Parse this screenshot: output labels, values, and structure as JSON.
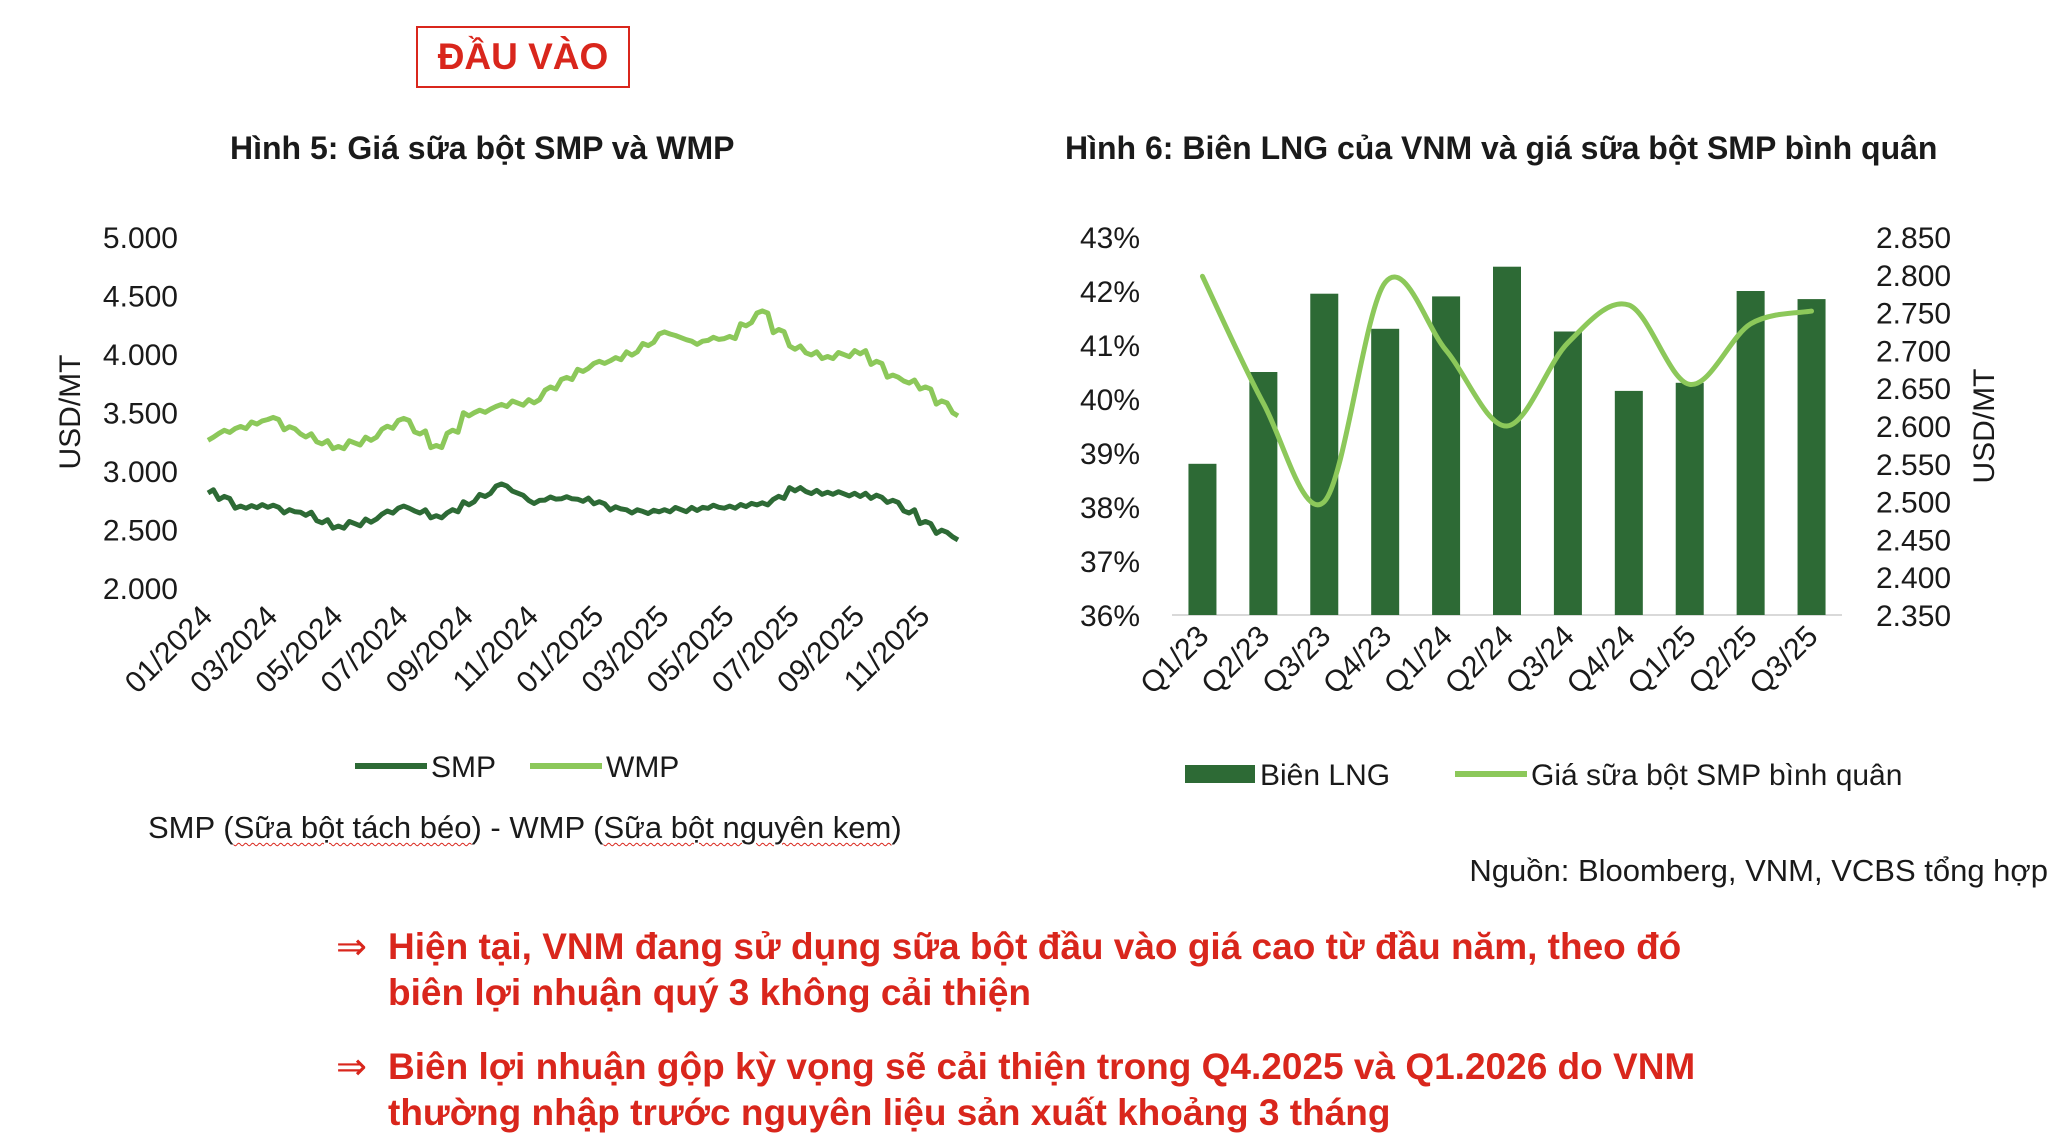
{
  "heading": "ĐẦU VÀO",
  "chart_data": [
    {
      "type": "line",
      "title": "Hình 5: Giá sữa bột SMP và WMP",
      "ylabel": "USD/MT",
      "ylim": [
        2000,
        5000
      ],
      "yticks": [
        "5.000",
        "4.500",
        "4.000",
        "3.500",
        "3.000",
        "2.500",
        "2.000"
      ],
      "xticks": [
        "01/2024",
        "03/2024",
        "05/2024",
        "07/2024",
        "09/2024",
        "11/2024",
        "01/2025",
        "03/2025",
        "05/2025",
        "07/2025",
        "09/2025",
        "11/2025"
      ],
      "x": [
        "01/2024",
        "02/2024",
        "03/2024",
        "04/2024",
        "05/2024",
        "06/2024",
        "07/2024",
        "08/2024",
        "09/2024",
        "10/2024",
        "11/2024",
        "12/2024",
        "01/2025",
        "02/2025",
        "03/2025",
        "04/2025",
        "05/2025",
        "06/2025",
        "07/2025",
        "08/2025",
        "09/2025",
        "10/2025",
        "11/2025",
        "12/2025"
      ],
      "series": [
        {
          "name": "SMP",
          "color": "#2d6a35",
          "values": [
            2830,
            2700,
            2690,
            2630,
            2520,
            2580,
            2700,
            2600,
            2720,
            2880,
            2740,
            2780,
            2720,
            2650,
            2660,
            2680,
            2700,
            2710,
            2840,
            2810,
            2800,
            2750,
            2550,
            2420
          ]
        },
        {
          "name": "WMP",
          "color": "#8cc85a",
          "values": [
            3280,
            3380,
            3440,
            3300,
            3200,
            3280,
            3450,
            3200,
            3480,
            3560,
            3600,
            3800,
            3920,
            4000,
            4180,
            4100,
            4150,
            4350,
            4050,
            3970,
            4020,
            3820,
            3700,
            3480
          ]
        }
      ],
      "legend": "bottom",
      "note": "SMP (Sữa bột tách béo) - WMP (Sữa bột nguyên kem)"
    },
    {
      "type": "bar",
      "title": "Hình 6: Biên LNG của VNM và giá sữa bột SMP bình quân",
      "categories": [
        "Q1/23",
        "Q2/23",
        "Q3/23",
        "Q4/23",
        "Q1/24",
        "Q2/24",
        "Q3/24",
        "Q4/24",
        "Q1/25",
        "Q2/25",
        "Q3/25"
      ],
      "y_left": {
        "ylim": [
          36,
          43
        ],
        "ticks": [
          "43%",
          "42%",
          "41%",
          "40%",
          "39%",
          "38%",
          "37%",
          "36%"
        ]
      },
      "y_right": {
        "label": "USD/MT",
        "ylim": [
          2350,
          2850
        ],
        "ticks": [
          "2.850",
          "2.800",
          "2.750",
          "2.700",
          "2.650",
          "2.600",
          "2.550",
          "2.500",
          "2.450",
          "2.400",
          "2.350"
        ]
      },
      "series": [
        {
          "name": "Biên LNG",
          "type": "bar",
          "axis": "left",
          "color": "#2d6a35",
          "values": [
            38.8,
            40.5,
            41.95,
            41.3,
            41.9,
            42.45,
            41.25,
            40.15,
            40.3,
            42.0,
            41.85
          ]
        },
        {
          "name": "Giá sữa bột SMP bình quân",
          "type": "line",
          "axis": "right",
          "color": "#8cc85a",
          "values": [
            2798,
            2630,
            2500,
            2790,
            2700,
            2600,
            2710,
            2760,
            2655,
            2735,
            2752
          ]
        }
      ],
      "legend": "bottom"
    }
  ],
  "source": "Nguồn: Bloomberg, VNM, VCBS tổng hợp",
  "bullets": [
    {
      "arrow": "⇒",
      "lines": [
        "Hiện tại, VNM đang sử dụng sữa bột đầu vào giá cao từ đầu năm, theo đó",
        "biên lợi nhuận quý 3 không cải thiện"
      ]
    },
    {
      "arrow": "⇒",
      "lines": [
        "Biên lợi nhuận gộp kỳ vọng sẽ cải thiện trong Q4.2025 và Q1.2026 do VNM",
        "thường nhập trước nguyên liệu sản xuất khoảng 3 tháng"
      ]
    }
  ]
}
